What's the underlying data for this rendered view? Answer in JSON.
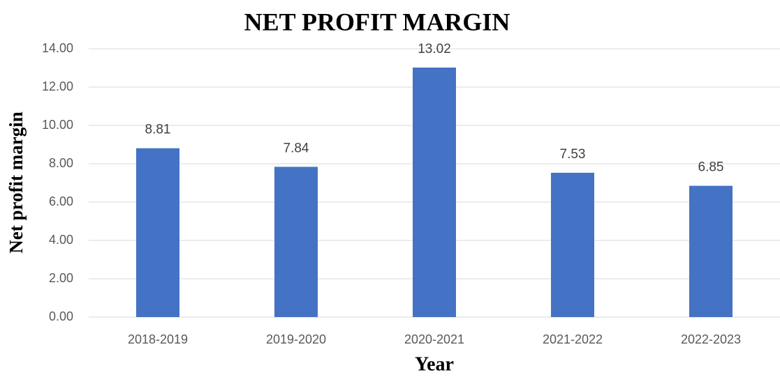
{
  "chart_data": {
    "type": "bar",
    "title": "NET PROFIT MARGIN",
    "x_label": "Year",
    "y_label": "Net profit margin",
    "categories": [
      "2018-2019",
      "2019-2020",
      "2020-2021",
      "2021-2022",
      "2022-2023"
    ],
    "values": [
      8.81,
      7.84,
      13.02,
      7.53,
      6.85
    ],
    "color": "#4472c4",
    "ylim": [
      0,
      14
    ],
    "yticks": [
      {
        "value": 0,
        "label": "0.00"
      },
      {
        "value": 2,
        "label": "2.00"
      },
      {
        "value": 4,
        "label": "4.00"
      },
      {
        "value": 6,
        "label": "6.00"
      },
      {
        "value": 8,
        "label": "8.00"
      },
      {
        "value": 10,
        "label": "10.00"
      },
      {
        "value": 12,
        "label": "12.00"
      },
      {
        "value": 14,
        "label": "14.00"
      }
    ],
    "grid": true
  }
}
